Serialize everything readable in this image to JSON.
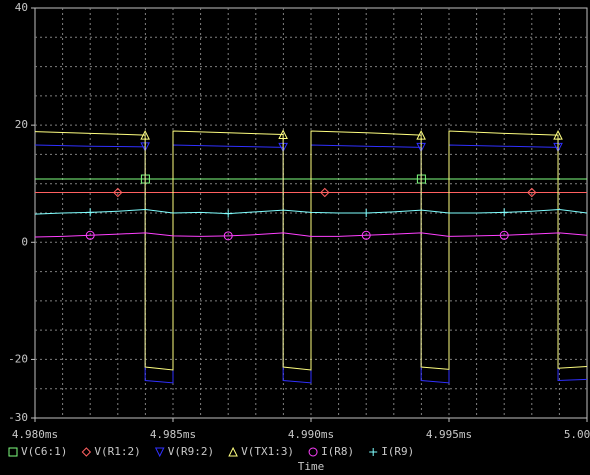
{
  "chart_data": {
    "type": "line",
    "x_label": "Time",
    "xlim": [
      4.98,
      5.0
    ],
    "xticks": [
      {
        "value": 4.98,
        "label": "4.980ms"
      },
      {
        "value": 4.985,
        "label": "4.985ms"
      },
      {
        "value": 4.99,
        "label": "4.990ms"
      },
      {
        "value": 4.995,
        "label": "4.995ms"
      },
      {
        "value": 5.0,
        "label": "5.000ms"
      }
    ],
    "ylim": [
      -30,
      40
    ],
    "yticks": [
      -30,
      -20,
      0,
      20,
      40
    ],
    "xgrid": [
      4.981,
      4.982,
      4.983,
      4.984,
      4.985,
      4.986,
      4.987,
      4.988,
      4.989,
      4.99,
      4.991,
      4.992,
      4.993,
      4.994,
      4.995,
      4.996,
      4.997,
      4.998,
      4.999
    ],
    "ygrid": [
      -25,
      -20,
      -15,
      -10,
      -5,
      0,
      5,
      10,
      15,
      20,
      25,
      30,
      35
    ],
    "series": [
      {
        "name": "V(C6:1)",
        "color": "#80ff80",
        "marker": "square",
        "x": [
          4.98,
          4.982,
          4.984,
          4.986,
          4.988,
          4.99,
          4.992,
          4.994,
          4.996,
          4.998,
          5.0
        ],
        "values": [
          10.8,
          10.8,
          10.8,
          10.8,
          10.8,
          10.8,
          10.8,
          10.8,
          10.8,
          10.8,
          10.8
        ]
      },
      {
        "name": "V(R1:2)",
        "color": "#ff6060",
        "marker": "diamond",
        "x": [
          4.98,
          4.9815,
          4.983,
          4.9845,
          4.986,
          4.9875,
          4.989,
          4.9905,
          4.992,
          4.9935,
          4.995,
          4.9965,
          4.998,
          5.0
        ],
        "values": [
          8.5,
          8.5,
          8.5,
          8.5,
          8.5,
          8.5,
          8.5,
          8.5,
          8.5,
          8.5,
          8.5,
          8.5,
          8.5,
          8.5
        ]
      },
      {
        "name": "V(R9:2)",
        "color": "#3030ff",
        "marker": "triangle-down",
        "x": [
          4.98,
          4.982,
          4.98399,
          4.98399,
          4.985,
          4.985,
          4.987,
          4.98899,
          4.98899,
          4.99,
          4.99,
          4.992,
          4.99399,
          4.99399,
          4.995,
          4.995,
          4.997,
          4.99895,
          4.99895,
          5.0
        ],
        "values": [
          16.6,
          16.4,
          16.3,
          -23.6,
          -24.0,
          16.6,
          16.4,
          16.2,
          -23.6,
          -24.0,
          16.6,
          16.4,
          16.2,
          -23.6,
          -24.0,
          16.6,
          16.4,
          16.2,
          -23.6,
          -23.4
        ]
      },
      {
        "name": "V(TX1:3)",
        "color": "#ffff80",
        "marker": "triangle",
        "x": [
          4.98,
          4.982,
          4.98399,
          4.98399,
          4.985,
          4.985,
          4.987,
          4.98899,
          4.98899,
          4.99,
          4.99,
          4.992,
          4.99399,
          4.99399,
          4.995,
          4.995,
          4.997,
          4.99895,
          4.99895,
          5.0
        ],
        "values": [
          18.9,
          18.6,
          18.3,
          -21.3,
          -21.8,
          19.0,
          18.7,
          18.4,
          -21.3,
          -21.8,
          19.0,
          18.7,
          18.3,
          -21.3,
          -21.7,
          19.0,
          18.6,
          18.3,
          -21.5,
          -21.2
        ]
      },
      {
        "name": "I(R8)",
        "color": "#ff40ff",
        "marker": "circle",
        "x": [
          4.98,
          4.981,
          4.982,
          4.983,
          4.984,
          4.985,
          4.986,
          4.987,
          4.988,
          4.989,
          4.99,
          4.991,
          4.992,
          4.993,
          4.994,
          4.995,
          4.996,
          4.997,
          4.998,
          4.999,
          5.0
        ],
        "values": [
          0.9,
          1.0,
          1.2,
          1.4,
          1.6,
          1.1,
          1.0,
          1.1,
          1.3,
          1.6,
          1.0,
          1.0,
          1.2,
          1.4,
          1.6,
          1.0,
          1.1,
          1.2,
          1.4,
          1.6,
          1.2
        ]
      },
      {
        "name": "I(R9)",
        "color": "#80ffff",
        "marker": "plus",
        "x": [
          4.98,
          4.981,
          4.982,
          4.983,
          4.984,
          4.985,
          4.986,
          4.987,
          4.988,
          4.989,
          4.99,
          4.991,
          4.992,
          4.993,
          4.994,
          4.995,
          4.996,
          4.997,
          4.998,
          4.999,
          5.0
        ],
        "values": [
          4.8,
          5.0,
          5.1,
          5.3,
          5.6,
          5.0,
          5.1,
          4.9,
          5.2,
          5.5,
          5.1,
          5.0,
          5.0,
          5.2,
          5.5,
          5.0,
          5.0,
          5.1,
          5.3,
          5.6,
          5.0
        ]
      }
    ]
  }
}
